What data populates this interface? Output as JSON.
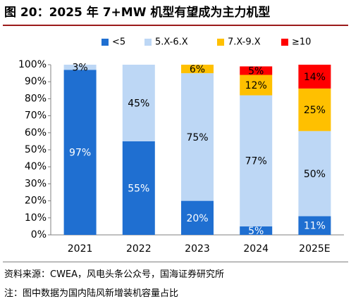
{
  "title": "图 20：2025 年 7+MW 机型有望成为主力机型",
  "footer": {
    "source": "资料来源：CWEA，风电头条公众号，国海证券研究所",
    "note": "注：图中数据为国内陆风新增装机容量占比"
  },
  "chart_data": {
    "type": "bar",
    "stacked": true,
    "categories": [
      "2021",
      "2022",
      "2023",
      "2024",
      "2025E"
    ],
    "series": [
      {
        "name": "<5",
        "color": "#1f6fd1",
        "values": [
          97,
          55,
          20,
          5,
          11
        ],
        "labels": [
          "97%",
          "55%",
          "20%",
          "5%",
          "11%"
        ]
      },
      {
        "name": "5.X-6.X",
        "color": "#bdd7f5",
        "values": [
          3,
          45,
          75,
          77,
          50
        ],
        "labels": [
          "3%",
          "45%",
          "75%",
          "77%",
          "50%"
        ]
      },
      {
        "name": "7.X-9.X",
        "color": "#ffc000",
        "values": [
          0,
          0,
          6,
          12,
          25
        ],
        "labels": [
          "",
          "",
          "6%",
          "12%",
          "25%"
        ]
      },
      {
        "name": "≥10",
        "color": "#ff0000",
        "values": [
          0,
          0,
          0,
          5,
          14
        ],
        "labels": [
          "",
          "",
          "",
          "5%",
          "14%"
        ]
      }
    ],
    "ylim": [
      0,
      100
    ],
    "yticks": [
      "0%",
      "10%",
      "20%",
      "30%",
      "40%",
      "50%",
      "60%",
      "70%",
      "80%",
      "90%",
      "100%"
    ],
    "legend": "top",
    "grid": false
  }
}
